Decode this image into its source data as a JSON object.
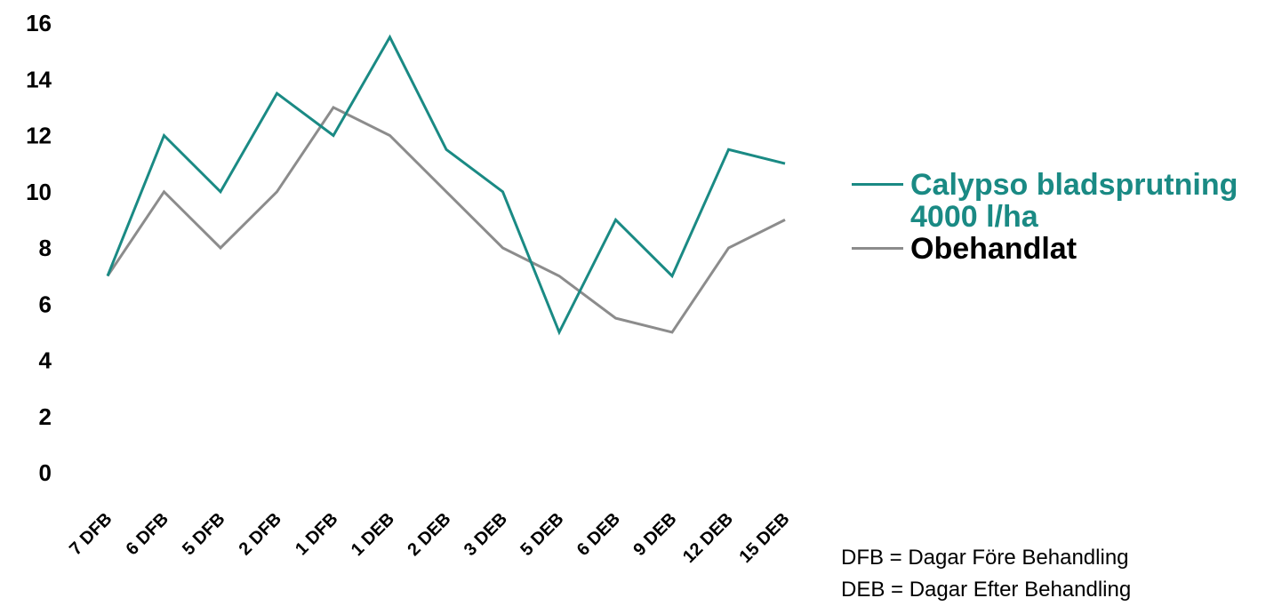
{
  "chart_data": {
    "type": "line",
    "categories": [
      "7 DFB",
      "6 DFB",
      "5 DFB",
      "2 DFB",
      "1 DFB",
      "1 DEB",
      "2 DEB",
      "3 DEB",
      "5 DEB",
      "6 DEB",
      "9 DEB",
      "12 DEB",
      "15 DEB"
    ],
    "series": [
      {
        "name": "Calypso bladsprutning 4000 l/ha",
        "color": "#1a8a84",
        "values": [
          7,
          12,
          10,
          13.5,
          12,
          15.5,
          11.5,
          10,
          5,
          9,
          7,
          11.5,
          11
        ]
      },
      {
        "name": "Obehandlat",
        "color": "#8c8c8c",
        "values": [
          7,
          10,
          8,
          10,
          13,
          12,
          10,
          8,
          7,
          5.5,
          5,
          8,
          9
        ]
      }
    ],
    "ylim": [
      0,
      16
    ],
    "yticks": [
      "0",
      "2",
      "4",
      "6",
      "8",
      "10",
      "12",
      "14",
      "16"
    ],
    "grid": false,
    "legend_position": "right",
    "title": "",
    "xlabel": "",
    "ylabel": ""
  },
  "legend": {
    "item1": "Calypso bladsprutning 4000 l/ha",
    "item2": "Obehandlat"
  },
  "footnotes": {
    "line1": "DFB = Dagar Före Behandling",
    "line2": "DEB = Dagar Efter Behandling"
  }
}
